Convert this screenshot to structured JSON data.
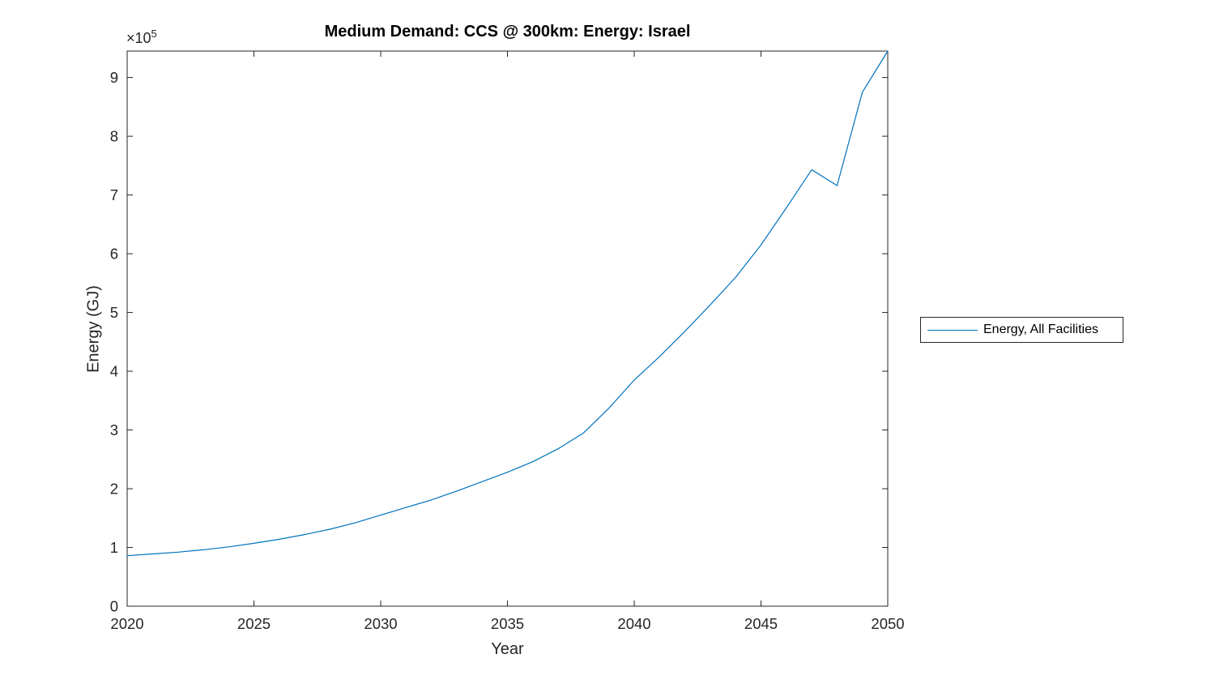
{
  "figure": {
    "title": "Medium Demand: CCS @ 300km: Energy: Israel",
    "xlabel": "Year",
    "ylabel": "Energy (GJ)",
    "y_multiplier_base": "×10",
    "y_multiplier_exponent": "5",
    "legend_label": "Energy, All Facilities"
  },
  "chart_data": {
    "type": "line",
    "title": "Medium Demand: CCS @ 300km: Energy: Israel",
    "xlabel": "Year",
    "ylabel": "Energy (GJ)",
    "y_axis_multiplier": "x10^5",
    "x": [
      2020,
      2021,
      2022,
      2023,
      2024,
      2025,
      2026,
      2027,
      2028,
      2029,
      2030,
      2031,
      2032,
      2033,
      2034,
      2035,
      2036,
      2037,
      2038,
      2039,
      2040,
      2041,
      2042,
      2043,
      2044,
      2045,
      2046,
      2047,
      2048,
      2049,
      2050
    ],
    "series": [
      {
        "name": "Energy, All Facilities",
        "color": "#0072BD",
        "values": [
          86000,
          89000,
          92000,
          96000,
          101000,
          107000,
          114000,
          122000,
          131000,
          142000,
          155000,
          168000,
          181000,
          196000,
          212000,
          228000,
          246000,
          268000,
          295000,
          337000,
          385000,
          425000,
          468000,
          513000,
          560000,
          615000,
          678000,
          743000,
          716000,
          875000,
          945000
        ]
      }
    ],
    "xlim": [
      2020,
      2050
    ],
    "ylim": [
      0,
      945000
    ],
    "xticks": [
      2020,
      2025,
      2030,
      2035,
      2040,
      2045,
      2050
    ],
    "yticks": [
      0,
      100000,
      200000,
      300000,
      400000,
      500000,
      600000,
      700000,
      800000,
      900000
    ],
    "ytick_labels": [
      "0",
      "1",
      "2",
      "3",
      "4",
      "5",
      "6",
      "7",
      "8",
      "9"
    ],
    "grid": false,
    "legend": {
      "entries": [
        "Energy, All Facilities"
      ],
      "position": "outside-right"
    },
    "axis_color": "#262626",
    "background": "#FFFFFF"
  }
}
